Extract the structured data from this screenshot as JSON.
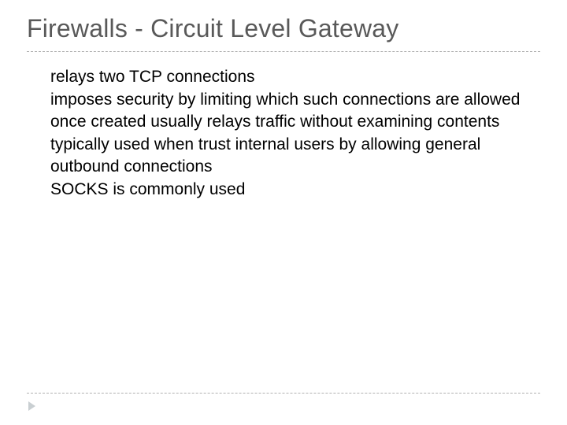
{
  "slide": {
    "title": "Firewalls - Circuit Level Gateway",
    "title_color": "#595959",
    "title_fontsize": 32,
    "bullet_marker_glyph": "",
    "bullet_marker_color": "#9aa6ac",
    "body_fontsize": 21,
    "body_color": "#000000",
    "rule_color": "#b0b0b0",
    "background_color": "#ffffff",
    "bullets": [
      "relays two TCP connections",
      "imposes security by limiting which such connections are allowed",
      "once created usually relays traffic without examining contents",
      "typically used when trust internal users by allowing general outbound connections",
      "SOCKS is commonly used"
    ]
  }
}
